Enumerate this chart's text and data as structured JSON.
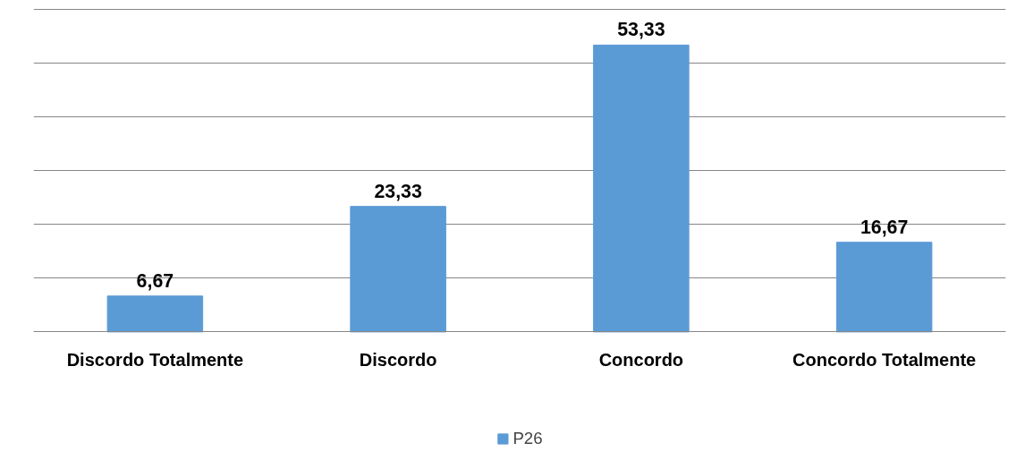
{
  "chart_data": {
    "type": "bar",
    "categories": [
      "Discordo Totalmente",
      "Discordo",
      "Concordo",
      "Concordo Totalmente"
    ],
    "series": [
      {
        "name": "P26",
        "color": "#5b9bd5",
        "values": [
          6.67,
          23.33,
          53.33,
          16.67
        ],
        "value_labels": [
          "6,67",
          "23,33",
          "53,33",
          "16,67"
        ]
      }
    ],
    "tick_labels": "x",
    "grid": "y",
    "legend": "bottom"
  }
}
